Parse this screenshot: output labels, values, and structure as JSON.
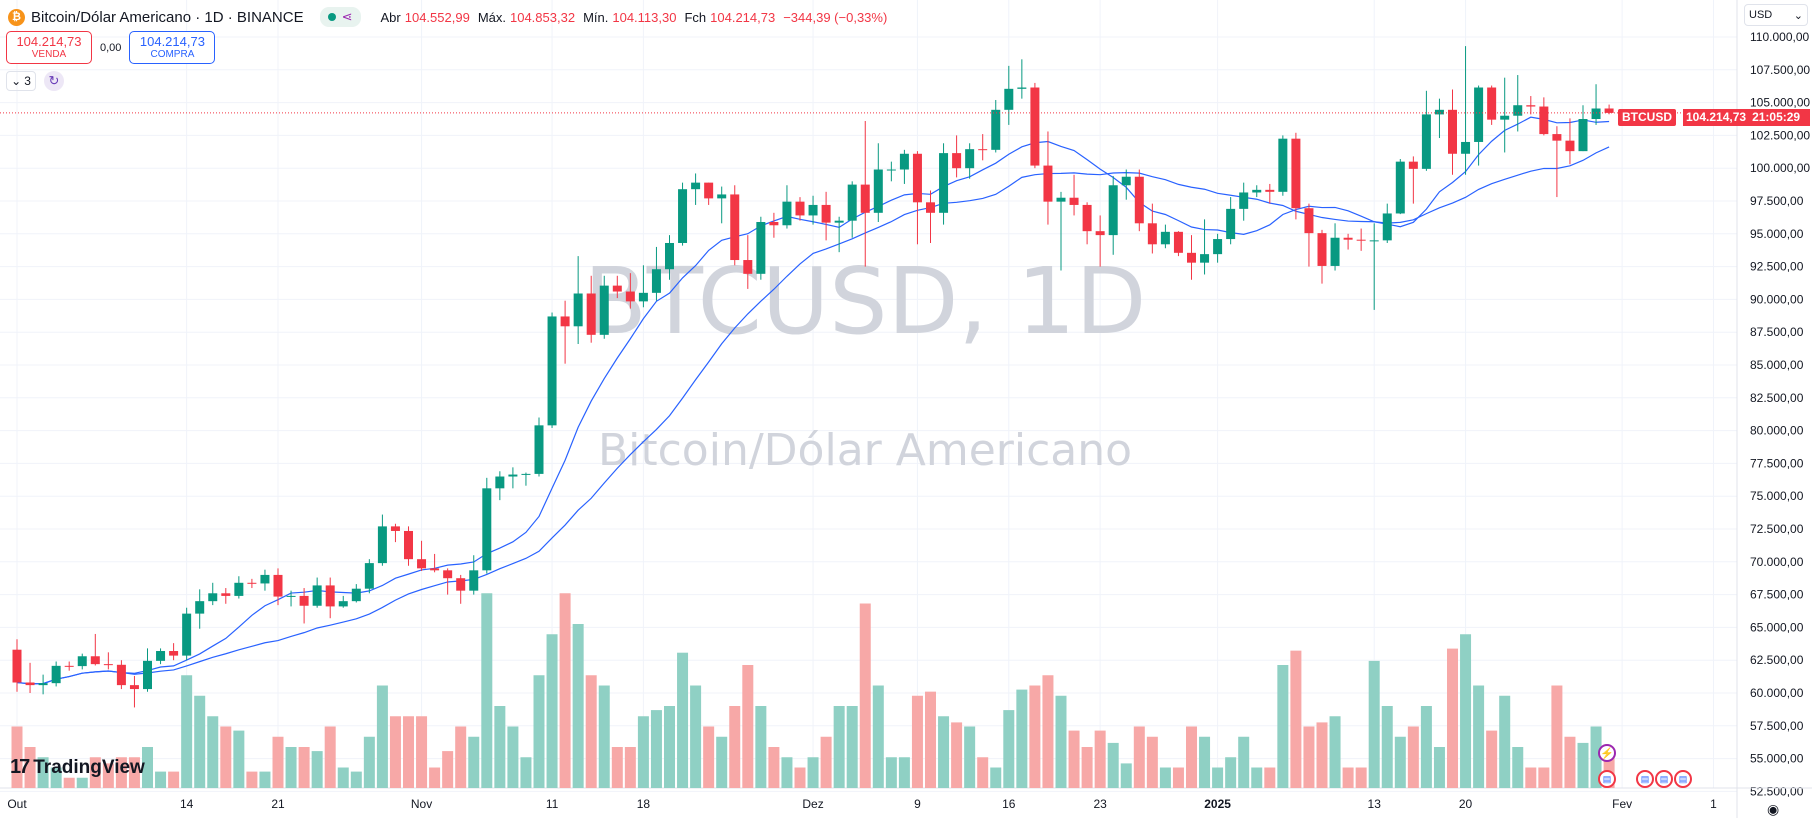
{
  "header": {
    "symbol_title": "Bitcoin/Dólar Americano · 1D · BINANCE",
    "open_label": "Abr",
    "open": "104.552,99",
    "high_label": "Máx.",
    "high": "104.853,32",
    "low_label": "Mín.",
    "low": "104.113,30",
    "close_label": "Fch",
    "close": "104.214,73",
    "change": "−344,39 (−0,33%)"
  },
  "trade": {
    "sell_price": "104.214,73",
    "sell_label": "VENDA",
    "spread": "0,00",
    "buy_price": "104.214,73",
    "buy_label": "COMPRA"
  },
  "indicators_count": "3",
  "currency": "USD",
  "brand": "TradingView",
  "price_label": {
    "symbol": "BTCUSD",
    "price": "104.214,73",
    "countdown": "21:05:29"
  },
  "colors": {
    "up": "#089981",
    "down": "#f23645",
    "ma": "#2962ff",
    "volume_up": "#8fd0c4",
    "volume_down": "#f7a8a7"
  },
  "chart_data": {
    "type": "candlestick",
    "watermark": {
      "line1": "BTCUSD, 1D",
      "line2": "Bitcoin/Dólar Americano"
    },
    "ylim": [
      51500,
      111500
    ],
    "y_ticks": [
      "110.000,00",
      "107.500,00",
      "105.000,00",
      "102.500,00",
      "100.000,00",
      "97.500,00",
      "95.000,00",
      "92.500,00",
      "90.000,00",
      "87.500,00",
      "85.000,00",
      "82.500,00",
      "80.000,00",
      "77.500,00",
      "75.000,00",
      "72.500,00",
      "70.000,00",
      "67.500,00",
      "65.000,00",
      "62.500,00",
      "60.000,00",
      "57.500,00",
      "55.000,00",
      "52.500,00"
    ],
    "x_ticks": [
      {
        "label": "Out",
        "day": 0
      },
      {
        "label": "14",
        "day": 13
      },
      {
        "label": "21",
        "day": 20
      },
      {
        "label": "Nov",
        "day": 31
      },
      {
        "label": "11",
        "day": 41
      },
      {
        "label": "18",
        "day": 48
      },
      {
        "label": "Dez",
        "day": 61
      },
      {
        "label": "9",
        "day": 69
      },
      {
        "label": "16",
        "day": 76
      },
      {
        "label": "23",
        "day": 83
      },
      {
        "label": "2025",
        "day": 92
      },
      {
        "label": "13",
        "day": 104
      },
      {
        "label": "20",
        "day": 111
      },
      {
        "label": "Fev",
        "day": 123
      },
      {
        "label": "1",
        "day": 130
      }
    ],
    "moving_averages": [
      9,
      21
    ],
    "ohlc": [
      [
        63300,
        64100,
        60100,
        60800
      ],
      [
        60800,
        62300,
        60000,
        60600
      ],
      [
        60600,
        61400,
        59900,
        60750
      ],
      [
        60750,
        62400,
        60500,
        62070
      ],
      [
        62070,
        62400,
        61700,
        62050
      ],
      [
        62050,
        63000,
        61800,
        62800
      ],
      [
        62800,
        64500,
        62100,
        62200
      ],
      [
        62200,
        63100,
        61800,
        62150
      ],
      [
        62150,
        62500,
        60300,
        60600
      ],
      [
        60600,
        61300,
        58900,
        60300
      ],
      [
        60300,
        63400,
        60100,
        62450
      ],
      [
        62450,
        63400,
        62200,
        63200
      ],
      [
        63200,
        63800,
        62500,
        62850
      ],
      [
        62850,
        66500,
        62500,
        66050
      ],
      [
        66050,
        67900,
        64900,
        67000
      ],
      [
        67000,
        68400,
        66700,
        67600
      ],
      [
        67600,
        68000,
        66800,
        67400
      ],
      [
        67400,
        68900,
        67200,
        68400
      ],
      [
        68400,
        68700,
        68000,
        68350
      ],
      [
        68350,
        69400,
        67800,
        69000
      ],
      [
        69000,
        69500,
        66700,
        67350
      ],
      [
        67350,
        67800,
        66600,
        67400
      ],
      [
        67400,
        68000,
        65300,
        66650
      ],
      [
        66650,
        68800,
        66500,
        68200
      ],
      [
        68200,
        68800,
        65700,
        66600
      ],
      [
        66600,
        67400,
        66500,
        67000
      ],
      [
        67000,
        68300,
        66900,
        67950
      ],
      [
        67950,
        70200,
        67600,
        69900
      ],
      [
        69900,
        73600,
        69700,
        72700
      ],
      [
        72700,
        72900,
        71500,
        72350
      ],
      [
        72350,
        72700,
        69700,
        70200
      ],
      [
        70200,
        71600,
        69300,
        69500
      ],
      [
        69500,
        70600,
        69200,
        69350
      ],
      [
        69350,
        69500,
        67500,
        68750
      ],
      [
        68750,
        69000,
        66800,
        67800
      ],
      [
        67800,
        70500,
        67500,
        69350
      ],
      [
        69350,
        76400,
        69100,
        75600
      ],
      [
        75600,
        76900,
        74700,
        76500
      ],
      [
        76500,
        77200,
        75600,
        76650
      ],
      [
        76650,
        76800,
        75800,
        76700
      ],
      [
        76700,
        81000,
        76500,
        80400
      ],
      [
        80400,
        89000,
        80200,
        88700
      ],
      [
        88700,
        89900,
        85100,
        87950
      ],
      [
        87950,
        93300,
        86600,
        90450
      ],
      [
        90450,
        91800,
        86700,
        87300
      ],
      [
        87300,
        91800,
        87000,
        91050
      ],
      [
        91050,
        91800,
        90100,
        90600
      ],
      [
        90600,
        92000,
        89300,
        89850
      ],
      [
        89850,
        92600,
        89400,
        90500
      ],
      [
        90500,
        94000,
        89900,
        92300
      ],
      [
        92300,
        94900,
        91500,
        94300
      ],
      [
        94300,
        98900,
        94100,
        98400
      ],
      [
        98400,
        99600,
        97200,
        98900
      ],
      [
        98900,
        98900,
        97200,
        97700
      ],
      [
        97700,
        98600,
        95800,
        98000
      ],
      [
        98000,
        98700,
        92600,
        93000
      ],
      [
        93000,
        94900,
        90800,
        91950
      ],
      [
        91950,
        96300,
        91500,
        95900
      ],
      [
        95900,
        96600,
        94700,
        95650
      ],
      [
        95650,
        98700,
        95400,
        97450
      ],
      [
        97450,
        97800,
        96000,
        96400
      ],
      [
        96400,
        97900,
        95700,
        97200
      ],
      [
        97200,
        98200,
        94500,
        95850
      ],
      [
        95850,
        96300,
        93600,
        96000
      ],
      [
        96000,
        99000,
        94700,
        98750
      ],
      [
        98750,
        103600,
        92500,
        96600
      ],
      [
        96600,
        101900,
        95900,
        99900
      ],
      [
        99900,
        100500,
        99000,
        99900
      ],
      [
        99900,
        101400,
        98800,
        101100
      ],
      [
        101100,
        101300,
        94200,
        97400
      ],
      [
        97400,
        98300,
        94300,
        96600
      ],
      [
        96600,
        101900,
        95700,
        101150
      ],
      [
        101150,
        102500,
        99300,
        100000
      ],
      [
        100000,
        101900,
        99200,
        101450
      ],
      [
        101450,
        102600,
        100600,
        101400
      ],
      [
        101400,
        105200,
        101200,
        104450
      ],
      [
        104450,
        107800,
        103300,
        106050
      ],
      [
        106050,
        108300,
        105300,
        106150
      ],
      [
        106150,
        106500,
        100000,
        100200
      ],
      [
        100200,
        102800,
        95700,
        97450
      ],
      [
        97450,
        98200,
        92200,
        97750
      ],
      [
        97750,
        99500,
        96400,
        97200
      ],
      [
        97200,
        97400,
        94200,
        95200
      ],
      [
        95200,
        96400,
        92500,
        94900
      ],
      [
        94900,
        99400,
        93400,
        98700
      ],
      [
        98700,
        99900,
        97600,
        99350
      ],
      [
        99350,
        99900,
        95200,
        95800
      ],
      [
        95800,
        97300,
        93500,
        94200
      ],
      [
        94200,
        95700,
        93900,
        95150
      ],
      [
        95150,
        95200,
        93300,
        93550
      ],
      [
        93550,
        94900,
        91500,
        92800
      ],
      [
        92800,
        96100,
        91900,
        93450
      ],
      [
        93450,
        95000,
        92800,
        94600
      ],
      [
        94600,
        97800,
        94200,
        96900
      ],
      [
        96900,
        98900,
        96000,
        98150
      ],
      [
        98150,
        98700,
        97800,
        98350
      ],
      [
        98350,
        98800,
        97300,
        98200
      ],
      [
        98200,
        102500,
        97900,
        102250
      ],
      [
        102250,
        102700,
        96100,
        96950
      ],
      [
        96950,
        97300,
        92500,
        95050
      ],
      [
        95050,
        95300,
        91200,
        92550
      ],
      [
        92550,
        95800,
        92200,
        94700
      ],
      [
        94700,
        95000,
        93800,
        94550
      ],
      [
        94550,
        95400,
        93700,
        94500
      ],
      [
        94500,
        95800,
        89200,
        94500
      ],
      [
        94500,
        97300,
        94300,
        96550
      ],
      [
        96550,
        100700,
        96500,
        100500
      ],
      [
        100500,
        100900,
        97300,
        99950
      ],
      [
        99950,
        105900,
        99800,
        104100
      ],
      [
        104100,
        105300,
        102300,
        104450
      ],
      [
        104450,
        106000,
        99500,
        101100
      ],
      [
        101100,
        109300,
        99500,
        102000
      ],
      [
        102000,
        106300,
        100200,
        106150
      ],
      [
        106150,
        106300,
        103300,
        103700
      ],
      [
        103700,
        106900,
        101200,
        104000
      ],
      [
        104000,
        107100,
        102800,
        104800
      ],
      [
        104800,
        105500,
        104100,
        104700
      ],
      [
        104700,
        105400,
        102500,
        102600
      ],
      [
        102600,
        103200,
        97800,
        102100
      ],
      [
        102100,
        103800,
        100300,
        101300
      ],
      [
        101300,
        104800,
        101300,
        103750
      ],
      [
        103750,
        106400,
        103300,
        104550
      ],
      [
        104550,
        104850,
        104110,
        104215
      ]
    ],
    "volume": [
      30,
      20,
      15,
      10,
      5,
      5,
      15,
      12,
      15,
      15,
      20,
      8,
      8,
      55,
      45,
      35,
      30,
      28,
      8,
      8,
      25,
      20,
      20,
      18,
      30,
      10,
      8,
      25,
      50,
      35,
      35,
      35,
      10,
      18,
      30,
      25,
      95,
      40,
      30,
      15,
      55,
      75,
      95,
      80,
      55,
      50,
      20,
      20,
      35,
      38,
      40,
      66,
      50,
      30,
      25,
      40,
      60,
      40,
      20,
      15,
      10,
      15,
      25,
      40,
      40,
      90,
      50,
      15,
      15,
      45,
      47,
      35,
      32,
      30,
      15,
      10,
      38,
      48,
      50,
      55,
      45,
      28,
      20,
      28,
      22,
      12,
      30,
      25,
      10,
      10,
      30,
      25,
      10,
      15,
      25,
      10,
      10,
      60,
      67,
      30,
      32,
      35,
      10,
      10,
      62,
      40,
      25,
      30,
      40,
      20,
      68,
      75,
      50,
      28,
      45,
      20,
      10,
      10,
      50,
      25,
      22,
      30,
      18
    ]
  }
}
